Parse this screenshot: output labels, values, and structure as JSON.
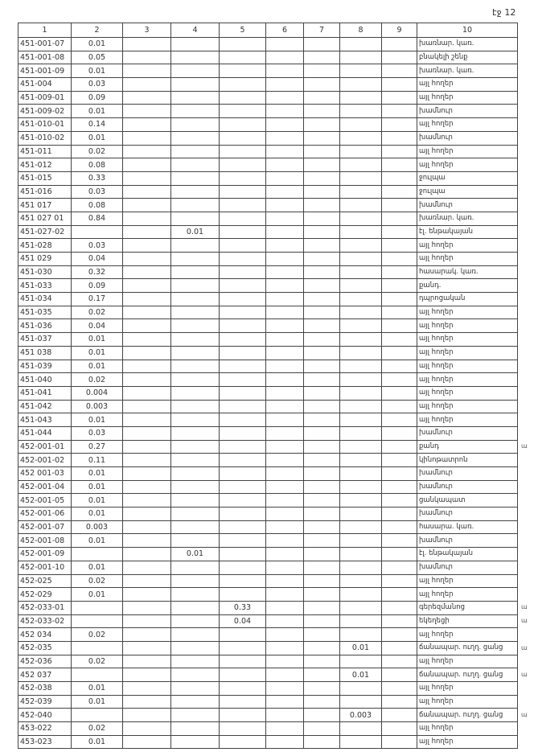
{
  "page_label": "էջ 12",
  "columns": [
    "1",
    "2",
    "3",
    "4",
    "5",
    "6",
    "7",
    "8",
    "9",
    "10"
  ],
  "rows": [
    [
      "451-001-07",
      "0.01",
      "",
      "",
      "",
      "",
      "",
      "",
      "",
      "խառնար. կառ."
    ],
    [
      "451-001-08",
      "0.05",
      "",
      "",
      "",
      "",
      "",
      "",
      "",
      "բնակելի շենք"
    ],
    [
      "451-001-09",
      "0.01",
      "",
      "",
      "",
      "",
      "",
      "",
      "",
      "խառնար. կառ."
    ],
    [
      "451-004",
      "0.03",
      "",
      "",
      "",
      "",
      "",
      "",
      "",
      "այլ հողեր"
    ],
    [
      "451-009-01",
      "0.09",
      "",
      "",
      "",
      "",
      "",
      "",
      "",
      "այլ հողեր"
    ],
    [
      "451-009-02",
      "0.01",
      "",
      "",
      "",
      "",
      "",
      "",
      "",
      "խամնուր"
    ],
    [
      "451-010-01",
      "0.14",
      "",
      "",
      "",
      "",
      "",
      "",
      "",
      "այլ հողեր"
    ],
    [
      "451-010-02",
      "0.01",
      "",
      "",
      "",
      "",
      "",
      "",
      "",
      "խամնուր"
    ],
    [
      "451-011",
      "0.02",
      "",
      "",
      "",
      "",
      "",
      "",
      "",
      "այլ հողեր"
    ],
    [
      "451-012",
      "0.08",
      "",
      "",
      "",
      "",
      "",
      "",
      "",
      "այլ հողեր"
    ],
    [
      "451-015",
      "0.33",
      "",
      "",
      "",
      "",
      "",
      "",
      "",
      "ջուլպա"
    ],
    [
      "451-016",
      "0.03",
      "",
      "",
      "",
      "",
      "",
      "",
      "",
      "ջուլպա"
    ],
    [
      "451 017",
      "0.08",
      "",
      "",
      "",
      "",
      "",
      "",
      "",
      "խամնուր"
    ],
    [
      "451 027 01",
      "0.84",
      "",
      "",
      "",
      "",
      "",
      "",
      "",
      "խառնար. կառ."
    ],
    [
      "451-027-02",
      "",
      "",
      "0.01",
      "",
      "",
      "",
      "",
      "",
      "էլ. ենթակայան"
    ],
    [
      "451-028",
      "0.03",
      "",
      "",
      "",
      "",
      "",
      "",
      "",
      "այլ հողեր"
    ],
    [
      "451 029",
      "0.04",
      "",
      "",
      "",
      "",
      "",
      "",
      "",
      "այլ հողեր"
    ],
    [
      "451-030",
      "0.32",
      "",
      "",
      "",
      "",
      "",
      "",
      "",
      "հասարակ. կառ."
    ],
    [
      "451-033",
      "0.09",
      "",
      "",
      "",
      "",
      "",
      "",
      "",
      "քանդ."
    ],
    [
      "451-034",
      "0.17",
      "",
      "",
      "",
      "",
      "",
      "",
      "",
      "դպրոցական"
    ],
    [
      "451-035",
      "0.02",
      "",
      "",
      "",
      "",
      "",
      "",
      "",
      "այլ հողեր"
    ],
    [
      "451-036",
      "0.04",
      "",
      "",
      "",
      "",
      "",
      "",
      "",
      "այլ հողեր"
    ],
    [
      "451-037",
      "0.01",
      "",
      "",
      "",
      "",
      "",
      "",
      "",
      "այլ հողեր"
    ],
    [
      "451 038",
      "0.01",
      "",
      "",
      "",
      "",
      "",
      "",
      "",
      "այլ հողեր"
    ],
    [
      "451-039",
      "0.01",
      "",
      "",
      "",
      "",
      "",
      "",
      "",
      "այլ հողեր"
    ],
    [
      "451-040",
      "0.02",
      "",
      "",
      "",
      "",
      "",
      "",
      "",
      "այլ հողեր"
    ],
    [
      "451-041",
      "0.004",
      "",
      "",
      "",
      "",
      "",
      "",
      "",
      "այլ հողեր"
    ],
    [
      "451-042",
      "0.003",
      "",
      "",
      "",
      "",
      "",
      "",
      "",
      "այլ հողեր"
    ],
    [
      "451-043",
      "0.01",
      "",
      "",
      "",
      "",
      "",
      "",
      "",
      "այլ հողեր"
    ],
    [
      "451-044",
      "0.03",
      "",
      "",
      "",
      "",
      "",
      "",
      "",
      "խամնուր"
    ],
    [
      "452-001-01",
      "0.27",
      "",
      "",
      "",
      "",
      "",
      "",
      "",
      "քանդ"
    ],
    [
      "452-001-02",
      "0.11",
      "",
      "",
      "",
      "",
      "",
      "",
      "",
      "կինոթատրոն"
    ],
    [
      "452 001-03",
      "0.01",
      "",
      "",
      "",
      "",
      "",
      "",
      "",
      "խամնուր"
    ],
    [
      "452-001-04",
      "0.01",
      "",
      "",
      "",
      "",
      "",
      "",
      "",
      "խամնուր"
    ],
    [
      "452-001-05",
      "0.01",
      "",
      "",
      "",
      "",
      "",
      "",
      "",
      "ցանկապատ"
    ],
    [
      "452-001-06",
      "0.01",
      "",
      "",
      "",
      "",
      "",
      "",
      "",
      "խամնուր"
    ],
    [
      "452-001-07",
      "0.003",
      "",
      "",
      "",
      "",
      "",
      "",
      "",
      "հասարա. կառ."
    ],
    [
      "452-001-08",
      "0.01",
      "",
      "",
      "",
      "",
      "",
      "",
      "",
      "խամնուր"
    ],
    [
      "452-001-09",
      "",
      "",
      "0.01",
      "",
      "",
      "",
      "",
      "",
      "էլ. ենթակայան"
    ],
    [
      "452-001-10",
      "0.01",
      "",
      "",
      "",
      "",
      "",
      "",
      "",
      "խամնուր"
    ],
    [
      "452-025",
      "0.02",
      "",
      "",
      "",
      "",
      "",
      "",
      "",
      "այլ հողեր"
    ],
    [
      "452-029",
      "0.01",
      "",
      "",
      "",
      "",
      "",
      "",
      "",
      "այլ հողեր"
    ],
    [
      "452-033-01",
      "",
      "",
      "",
      "0.33",
      "",
      "",
      "",
      "",
      "գերեզմանոց"
    ],
    [
      "452-033-02",
      "",
      "",
      "",
      "0.04",
      "",
      "",
      "",
      "",
      "եկեղեցի"
    ],
    [
      "452 034",
      "0.02",
      "",
      "",
      "",
      "",
      "",
      "",
      "",
      "այլ հողեր"
    ],
    [
      "452-035",
      "",
      "",
      "",
      "",
      "",
      "",
      "0.01",
      "",
      "ճանապար. ուղղ. ցանց"
    ],
    [
      "452-036",
      "0.02",
      "",
      "",
      "",
      "",
      "",
      "",
      "",
      "այլ հողեր"
    ],
    [
      "452 037",
      "",
      "",
      "",
      "",
      "",
      "",
      "0.01",
      "",
      "ճանապար. ուղղ. ցանց"
    ],
    [
      "452-038",
      "0.01",
      "",
      "",
      "",
      "",
      "",
      "",
      "",
      "այլ հողեր"
    ],
    [
      "452-039",
      "0.01",
      "",
      "",
      "",
      "",
      "",
      "",
      "",
      "այլ հողեր"
    ],
    [
      "452-040",
      "",
      "",
      "",
      "",
      "",
      "",
      "0.003",
      "",
      "ճանապար. ուղղ. ցանց"
    ],
    [
      "453-022",
      "0.02",
      "",
      "",
      "",
      "",
      "",
      "",
      "",
      "այլ հողեր"
    ],
    [
      "453-023",
      "0.01",
      "",
      "",
      "",
      "",
      "",
      "",
      "",
      "այլ հողեր"
    ]
  ],
  "margin_marks": [
    {
      "row": 31,
      "text": "ա"
    },
    {
      "row": 43,
      "text": "ա"
    },
    {
      "row": 44,
      "text": "ա"
    },
    {
      "row": 46,
      "text": "ա"
    },
    {
      "row": 48,
      "text": "ա"
    },
    {
      "row": 51,
      "text": "ա"
    }
  ]
}
